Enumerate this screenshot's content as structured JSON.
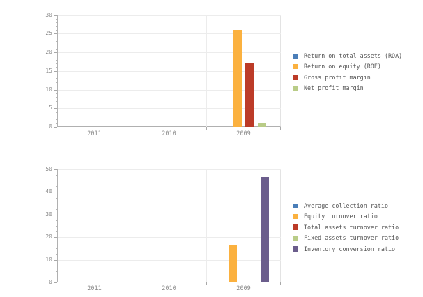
{
  "page": {
    "background": "#ffffff"
  },
  "theme": {
    "grid_color": "#ececec",
    "axis_color": "#a8a8a8",
    "right_spine_color": "#e3e3e3",
    "tick_label_color": "#8b8b8b",
    "legend_text_color": "#555555"
  },
  "chart_data": [
    {
      "id": "profitability-ratios",
      "type": "bar",
      "title": "",
      "xlabel": "",
      "ylabel": "",
      "categories": [
        "2011",
        "2010",
        "2009"
      ],
      "series": [
        {
          "name": "Return on total assets (ROA)",
          "color": "#4a7eb8",
          "values": [
            0,
            0,
            0
          ]
        },
        {
          "name": "Return on equity (ROE)",
          "color": "#fbb13f",
          "values": [
            0,
            0,
            26
          ]
        },
        {
          "name": "Gross profit margin",
          "color": "#bc3b28",
          "values": [
            0,
            0,
            17
          ]
        },
        {
          "name": "Net profit margin",
          "color": "#b9cc87",
          "values": [
            0,
            0,
            1
          ]
        }
      ],
      "ylim": [
        0,
        30
      ],
      "yticks": [
        0,
        5,
        10,
        15,
        20,
        25,
        30
      ],
      "minor_tick_unit": 1,
      "grid": true,
      "legend_position": "right"
    },
    {
      "id": "turnover-ratios",
      "type": "bar",
      "title": "",
      "xlabel": "",
      "ylabel": "",
      "categories": [
        "2011",
        "2010",
        "2009"
      ],
      "series": [
        {
          "name": "Average collection ratio",
          "color": "#4a7eb8",
          "values": [
            0,
            0,
            0
          ]
        },
        {
          "name": "Equity turnover ratio",
          "color": "#fbb13f",
          "values": [
            0,
            0,
            16.3
          ]
        },
        {
          "name": "Total assets turnover ratio",
          "color": "#bc3b28",
          "values": [
            0,
            0,
            0
          ]
        },
        {
          "name": "Fixed assets turnover ratio",
          "color": "#b9cc87",
          "values": [
            0,
            0,
            0
          ]
        },
        {
          "name": "Inventory conversion ratio",
          "color": "#6b5d8c",
          "values": [
            0,
            0,
            46.7
          ]
        }
      ],
      "ylim": [
        0,
        50
      ],
      "yticks": [
        0,
        10,
        20,
        30,
        40,
        50
      ],
      "minor_tick_unit": 2.5,
      "grid": true,
      "legend_position": "right"
    }
  ]
}
